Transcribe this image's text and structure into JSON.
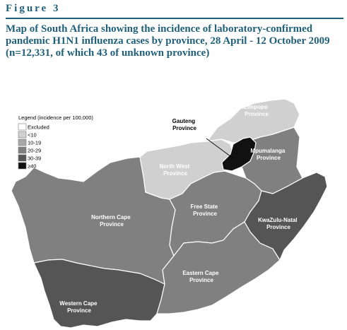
{
  "figure": {
    "label": "Figure 3",
    "title": "Map of South Africa showing the incidence of laboratory-confirmed pandemic H1N1 influenza cases by province, 28 April - 12 October 2009 (n=12,331, of which 43 of unknown province)"
  },
  "legend": {
    "title": "Legend (incidence per 100,000)",
    "classes": [
      {
        "label": "Excluded",
        "color": "#ffffff"
      },
      {
        "label": "<10",
        "color": "#d0d0d0"
      },
      {
        "label": "10-19",
        "color": "#a8a8a8"
      },
      {
        "label": "20-29",
        "color": "#808080"
      },
      {
        "label": "30-39",
        "color": "#555555"
      },
      {
        "label": "≥40",
        "color": "#111111"
      }
    ]
  },
  "provinces": {
    "limpopo": {
      "name": [
        "Limpopo",
        "Province"
      ],
      "class": "<10"
    },
    "gauteng": {
      "name": [
        "Gauteng",
        "Province"
      ],
      "class": "≥40"
    },
    "mpumalanga": {
      "name": [
        "Mpumalanga",
        "Province"
      ],
      "class": "20-29"
    },
    "north_west": {
      "name": [
        "North West",
        "Province"
      ],
      "class": "<10"
    },
    "free_state": {
      "name": [
        "Free State",
        "Province"
      ],
      "class": "20-29"
    },
    "kwazulu_natal": {
      "name": [
        "KwaZulu-Natal",
        "Province"
      ],
      "class": "30-39"
    },
    "northern_cape": {
      "name": [
        "Northern Cape",
        "Province"
      ],
      "class": "20-29"
    },
    "eastern_cape": {
      "name": [
        "Eastern Cape",
        "Province"
      ],
      "class": "20-29"
    },
    "western_cape": {
      "name": [
        "Western Cape",
        "Province"
      ],
      "class": "30-39"
    }
  }
}
